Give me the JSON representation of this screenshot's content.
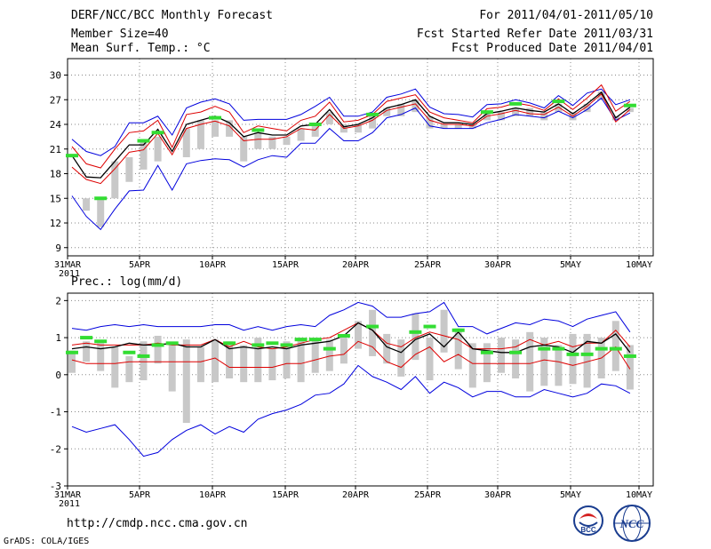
{
  "header": {
    "title": "DERF/NCC/BCC Monthly Forecast",
    "member_size": "Member Size=40",
    "variable": "Mean Surf. Temp.: °C",
    "period": "For 2011/04/01-2011/05/10",
    "started": "Fcst Started Refer Date 2011/03/31",
    "produced": "Fcst Produced Date 2011/04/01"
  },
  "footer": {
    "url": "http://cmdp.ncc.cma.gov.cn",
    "grads": "GrADS: COLA/IGES",
    "logo_bcc": "BCC",
    "logo_ncc": "NCC"
  },
  "colors": {
    "envelope": "#0000dd",
    "red_line": "#dd0000",
    "mean_line": "#000000",
    "bars": "#c8c8c8",
    "markers": "#33dd33",
    "grid": "#888888"
  },
  "chart_data": [
    {
      "type": "line",
      "title": "Mean Surf. Temp.: °C",
      "x_tick_labels": [
        "31MAR\n2011",
        "5APR",
        "10APR",
        "15APR",
        "20APR",
        "25APR",
        "30APR",
        "5MAY",
        "10MAY"
      ],
      "xlim": [
        0,
        40
      ],
      "ylim": [
        8,
        32
      ],
      "yticks": [
        9,
        12,
        15,
        18,
        21,
        24,
        27,
        30
      ],
      "grid": true,
      "series": [
        {
          "name": "max",
          "values": [
            22.2,
            20.7,
            20.2,
            21.3,
            24.2,
            24.2,
            25,
            22.7,
            26,
            26.7,
            27.1,
            26.5,
            24.5,
            24.6,
            24.6,
            24.6,
            25.2,
            26.2,
            27.3,
            25,
            25,
            25.5,
            27.3,
            27.7,
            28.3,
            26.1,
            25.3,
            25.2,
            24.9,
            26.4,
            26.5,
            27,
            26.6,
            26,
            27.5,
            26.3,
            27.8,
            28.3,
            26.4,
            27
          ]
        },
        {
          "name": "upper",
          "values": [
            21.3,
            19.2,
            18.7,
            21,
            23,
            23.2,
            24.5,
            21.2,
            25.2,
            25.5,
            26.2,
            25.5,
            23,
            23.8,
            23.5,
            23.2,
            24.5,
            25,
            26.7,
            24.3,
            24.5,
            25.2,
            26.8,
            27.2,
            27.6,
            25.5,
            24.8,
            24.5,
            24.2,
            25.9,
            26.1,
            26.6,
            26.3,
            25.7,
            27.1,
            25.8,
            27.2,
            28.8,
            25.6,
            26.8
          ]
        },
        {
          "name": "mean",
          "values": [
            20.2,
            17.6,
            17.5,
            19.5,
            21.5,
            21.5,
            23.4,
            20.7,
            24,
            24.5,
            25,
            24.2,
            22.5,
            23,
            22.7,
            22.7,
            23.8,
            24,
            25.8,
            23.7,
            24,
            24.8,
            26,
            26.4,
            27,
            25,
            24.2,
            24.2,
            24,
            25.3,
            25.6,
            26,
            25.7,
            25.5,
            26.5,
            25.3,
            26.5,
            27.9,
            24.8,
            26.1
          ]
        },
        {
          "name": "lower",
          "values": [
            18.8,
            17.3,
            16.8,
            18.6,
            20.6,
            20.9,
            22.9,
            20.3,
            23.5,
            24,
            24.4,
            23.8,
            22,
            22.2,
            22.2,
            22.5,
            23.5,
            23.3,
            25.2,
            23.5,
            23.8,
            24.5,
            25.7,
            26.1,
            26.5,
            24.5,
            24,
            24,
            23.8,
            25,
            25.3,
            25.7,
            25.3,
            25.2,
            26.1,
            25,
            26.2,
            27.7,
            24.3,
            25.8
          ]
        },
        {
          "name": "min",
          "values": [
            15.3,
            12.8,
            11.2,
            13.7,
            15.9,
            16,
            19,
            16,
            19.2,
            19.6,
            19.8,
            19.7,
            18.8,
            19.7,
            20.2,
            20,
            21.7,
            21.7,
            23.5,
            22,
            22,
            23,
            24.8,
            25.2,
            26,
            23.8,
            23.5,
            23.5,
            23.5,
            24.2,
            24.6,
            25.2,
            25,
            24.8,
            25.6,
            24.8,
            25.8,
            27.2,
            24.5,
            25.4
          ]
        },
        {
          "name": "bar_top",
          "values": [
            null,
            15,
            15,
            19.5,
            20,
            22,
            22.5,
            null,
            23.5,
            24.5,
            24.5,
            24.5,
            22.5,
            23,
            22.5,
            22.5,
            23.5,
            24,
            25.5,
            24,
            24,
            25,
            26,
            26.5,
            27,
            25,
            24,
            24,
            24,
            25.5,
            25.5,
            26,
            26,
            25.5,
            26.5,
            25.5,
            26.5,
            28,
            25,
            26
          ]
        },
        {
          "name": "bar_bottom",
          "values": [
            null,
            13.5,
            11.5,
            15,
            17,
            18.5,
            19.5,
            null,
            20,
            21,
            22.5,
            22.5,
            19.5,
            21,
            21,
            21.5,
            22,
            22.5,
            24,
            23,
            23,
            23.5,
            25,
            25,
            25.5,
            23.5,
            23.5,
            23.5,
            23.5,
            24.5,
            24.5,
            25,
            25,
            24.5,
            25.5,
            24.5,
            25.5,
            27,
            24.5,
            25.5
          ]
        },
        {
          "name": "obs",
          "values": [
            20.2,
            null,
            15,
            null,
            null,
            22,
            23,
            null,
            null,
            null,
            24.8,
            null,
            null,
            23.3,
            null,
            null,
            null,
            24,
            null,
            null,
            null,
            25.2,
            null,
            null,
            null,
            null,
            null,
            null,
            null,
            25.5,
            null,
            26.5,
            null,
            null,
            26.8,
            null,
            null,
            null,
            null,
            26.3
          ]
        }
      ]
    },
    {
      "type": "line",
      "title": "Prec.: log(mm/d)",
      "x_tick_labels": [
        "31MAR\n2011",
        "5APR",
        "10APR",
        "15APR",
        "20APR",
        "25APR",
        "30APR",
        "5MAY",
        "10MAY"
      ],
      "xlim": [
        0,
        40
      ],
      "ylim": [
        -3,
        2.2
      ],
      "yticks": [
        -3,
        -2,
        -1,
        0,
        1,
        2
      ],
      "grid": true,
      "series": [
        {
          "name": "max",
          "values": [
            1.25,
            1.2,
            1.3,
            1.35,
            1.3,
            1.35,
            1.3,
            1.3,
            1.3,
            1.3,
            1.35,
            1.35,
            1.2,
            1.3,
            1.2,
            1.3,
            1.35,
            1.3,
            1.6,
            1.75,
            1.95,
            1.85,
            1.55,
            1.55,
            1.65,
            1.7,
            1.95,
            1.3,
            1.3,
            1.1,
            1.25,
            1.4,
            1.35,
            1.5,
            1.45,
            1.3,
            1.5,
            1.6,
            1.7,
            1.15
          ]
        },
        {
          "name": "upper",
          "values": [
            0.8,
            0.85,
            0.8,
            0.8,
            0.8,
            0.8,
            0.85,
            0.8,
            0.8,
            0.8,
            0.95,
            0.75,
            0.9,
            0.75,
            0.7,
            0.75,
            0.85,
            0.95,
            1,
            1.2,
            1.4,
            1.2,
            0.85,
            0.75,
            1,
            1.15,
            1.05,
            0.95,
            0.7,
            0.7,
            0.7,
            0.75,
            0.95,
            0.8,
            0.9,
            0.75,
            0.85,
            0.85,
            1.2,
            0.75
          ]
        },
        {
          "name": "mean",
          "values": [
            0.7,
            0.75,
            0.7,
            0.75,
            0.85,
            0.8,
            0.8,
            0.85,
            0.75,
            0.75,
            0.95,
            0.7,
            0.75,
            0.7,
            0.75,
            0.7,
            0.8,
            0.85,
            0.9,
            1.05,
            1.4,
            1.2,
            0.75,
            0.6,
            0.95,
            1.1,
            0.75,
            1.15,
            0.7,
            0.65,
            0.6,
            0.6,
            0.75,
            0.8,
            0.75,
            0.6,
            0.9,
            0.85,
            1.1,
            0.6
          ]
        },
        {
          "name": "lower",
          "values": [
            0.4,
            0.3,
            0.3,
            0.3,
            0.35,
            0.35,
            0.35,
            0.35,
            0.35,
            0.35,
            0.45,
            0.2,
            0.2,
            0.2,
            0.2,
            0.3,
            0.3,
            0.4,
            0.5,
            0.55,
            0.9,
            0.75,
            0.35,
            0.2,
            0.55,
            0.75,
            0.35,
            0.55,
            0.3,
            0.3,
            0.3,
            0.3,
            0.3,
            0.4,
            0.35,
            0.25,
            0.35,
            0.45,
            0.75,
            0.15
          ]
        },
        {
          "name": "min",
          "values": [
            -1.4,
            -1.55,
            -1.45,
            -1.35,
            -1.75,
            -2.2,
            -2.1,
            -1.75,
            -1.5,
            -1.35,
            -1.6,
            -1.4,
            -1.55,
            -1.2,
            -1.05,
            -0.95,
            -0.8,
            -0.55,
            -0.5,
            -0.25,
            0.25,
            -0.05,
            -0.2,
            -0.4,
            -0.05,
            -0.5,
            -0.2,
            -0.35,
            -0.6,
            -0.45,
            -0.45,
            -0.6,
            -0.6,
            -0.4,
            -0.5,
            -0.6,
            -0.5,
            -0.25,
            -0.3,
            -0.5
          ]
        },
        {
          "name": "bar_top",
          "values": [
            0.65,
            0.9,
            0.85,
            0.75,
            0.5,
            0.9,
            1.05,
            0.85,
            0.95,
            0.75,
            0.95,
            0.9,
            0.8,
            1.0,
            0.7,
            0.9,
            1.0,
            1.0,
            0.95,
            1.0,
            1.45,
            1.75,
            1.1,
            0.95,
            1.65,
            1.0,
            1.75,
            1.25,
            0.85,
            0.85,
            1.0,
            0.95,
            1.15,
            1.0,
            0.8,
            1.1,
            1.1,
            1.0,
            1.45,
            0.8
          ]
        },
        {
          "name": "bar_bottom",
          "values": [
            0.05,
            0.35,
            0.1,
            -0.35,
            -0.2,
            -0.15,
            0.3,
            -0.45,
            -1.3,
            -0.2,
            -0.2,
            -0.1,
            -0.2,
            -0.2,
            -0.15,
            -0.1,
            -0.2,
            0.05,
            0.1,
            0.3,
            0.7,
            0.5,
            0.3,
            -0.05,
            0.4,
            -0.15,
            0.6,
            0.15,
            -0.35,
            -0.2,
            0.05,
            -0.1,
            -0.45,
            -0.3,
            -0.3,
            -0.25,
            -0.35,
            -0.1,
            0.1,
            -0.4
          ]
        },
        {
          "name": "obs",
          "values": [
            0.6,
            1.0,
            0.9,
            null,
            0.6,
            0.5,
            0.8,
            0.85,
            null,
            null,
            null,
            0.85,
            null,
            0.8,
            0.85,
            0.8,
            0.95,
            0.95,
            0.7,
            1.05,
            null,
            1.3,
            null,
            null,
            1.15,
            1.3,
            null,
            1.2,
            null,
            0.6,
            null,
            0.6,
            null,
            0.7,
            0.7,
            0.55,
            0.55,
            0.7,
            0.7,
            0.5
          ]
        }
      ]
    }
  ]
}
